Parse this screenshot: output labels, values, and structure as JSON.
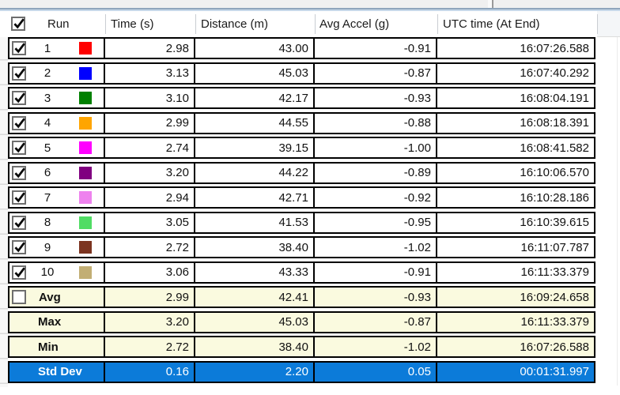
{
  "table": {
    "header": {
      "select_all_checked": true,
      "columns": [
        "Run",
        "Time (s)",
        "Distance (m)",
        "Avg Accel (g)",
        "UTC time (At End)"
      ]
    },
    "rows": [
      {
        "checked": true,
        "run": "1",
        "color": "#FF0000",
        "time": "2.98",
        "distance": "43.00",
        "accel": "-0.91",
        "utc": "16:07:26.588"
      },
      {
        "checked": true,
        "run": "2",
        "color": "#0000FF",
        "time": "3.13",
        "distance": "45.03",
        "accel": "-0.87",
        "utc": "16:07:40.292"
      },
      {
        "checked": true,
        "run": "3",
        "color": "#008000",
        "time": "3.10",
        "distance": "42.17",
        "accel": "-0.93",
        "utc": "16:08:04.191"
      },
      {
        "checked": true,
        "run": "4",
        "color": "#FFA500",
        "time": "2.99",
        "distance": "44.55",
        "accel": "-0.88",
        "utc": "16:08:18.391"
      },
      {
        "checked": true,
        "run": "5",
        "color": "#FF00FF",
        "time": "2.74",
        "distance": "39.15",
        "accel": "-1.00",
        "utc": "16:08:41.582"
      },
      {
        "checked": true,
        "run": "6",
        "color": "#800080",
        "time": "3.20",
        "distance": "44.22",
        "accel": "-0.89",
        "utc": "16:10:06.570"
      },
      {
        "checked": true,
        "run": "7",
        "color": "#EE82EE",
        "time": "2.94",
        "distance": "42.71",
        "accel": "-0.92",
        "utc": "16:10:28.186"
      },
      {
        "checked": true,
        "run": "8",
        "color": "#50DC64",
        "time": "3.05",
        "distance": "41.53",
        "accel": "-0.95",
        "utc": "16:10:39.615"
      },
      {
        "checked": true,
        "run": "9",
        "color": "#7C3420",
        "time": "2.72",
        "distance": "38.40",
        "accel": "-1.02",
        "utc": "16:11:07.787"
      },
      {
        "checked": true,
        "run": "10",
        "color": "#C2AE74",
        "time": "3.06",
        "distance": "43.33",
        "accel": "-0.91",
        "utc": "16:11:33.379"
      }
    ],
    "summary": [
      {
        "label": "Avg",
        "type": "avg",
        "has_checkbox": true,
        "checked": false,
        "time": "2.99",
        "distance": "42.41",
        "accel": "-0.93",
        "utc": "16:09:24.658"
      },
      {
        "label": "Max",
        "type": "max",
        "has_checkbox": false,
        "time": "3.20",
        "distance": "45.03",
        "accel": "-0.87",
        "utc": "16:11:33.379"
      },
      {
        "label": "Min",
        "type": "min",
        "has_checkbox": false,
        "time": "2.72",
        "distance": "38.40",
        "accel": "-1.02",
        "utc": "16:07:26.588"
      },
      {
        "label": "Std Dev",
        "type": "stddev",
        "has_checkbox": false,
        "time": "0.16",
        "distance": "2.20",
        "accel": "0.05",
        "utc": "00:01:31.997"
      }
    ],
    "colors": {
      "grid_border": "#000000",
      "summary_bg": "#FAFADF",
      "stddev_bg": "#0C7BD9",
      "stddev_text": "#FFFFFF",
      "checkbox_border": "#6E6E6E",
      "accent_line_top": "#8FA5BB",
      "accent_line_bottom": "#C7D8E9",
      "top_strip_bg": "#F0F0F0"
    }
  }
}
